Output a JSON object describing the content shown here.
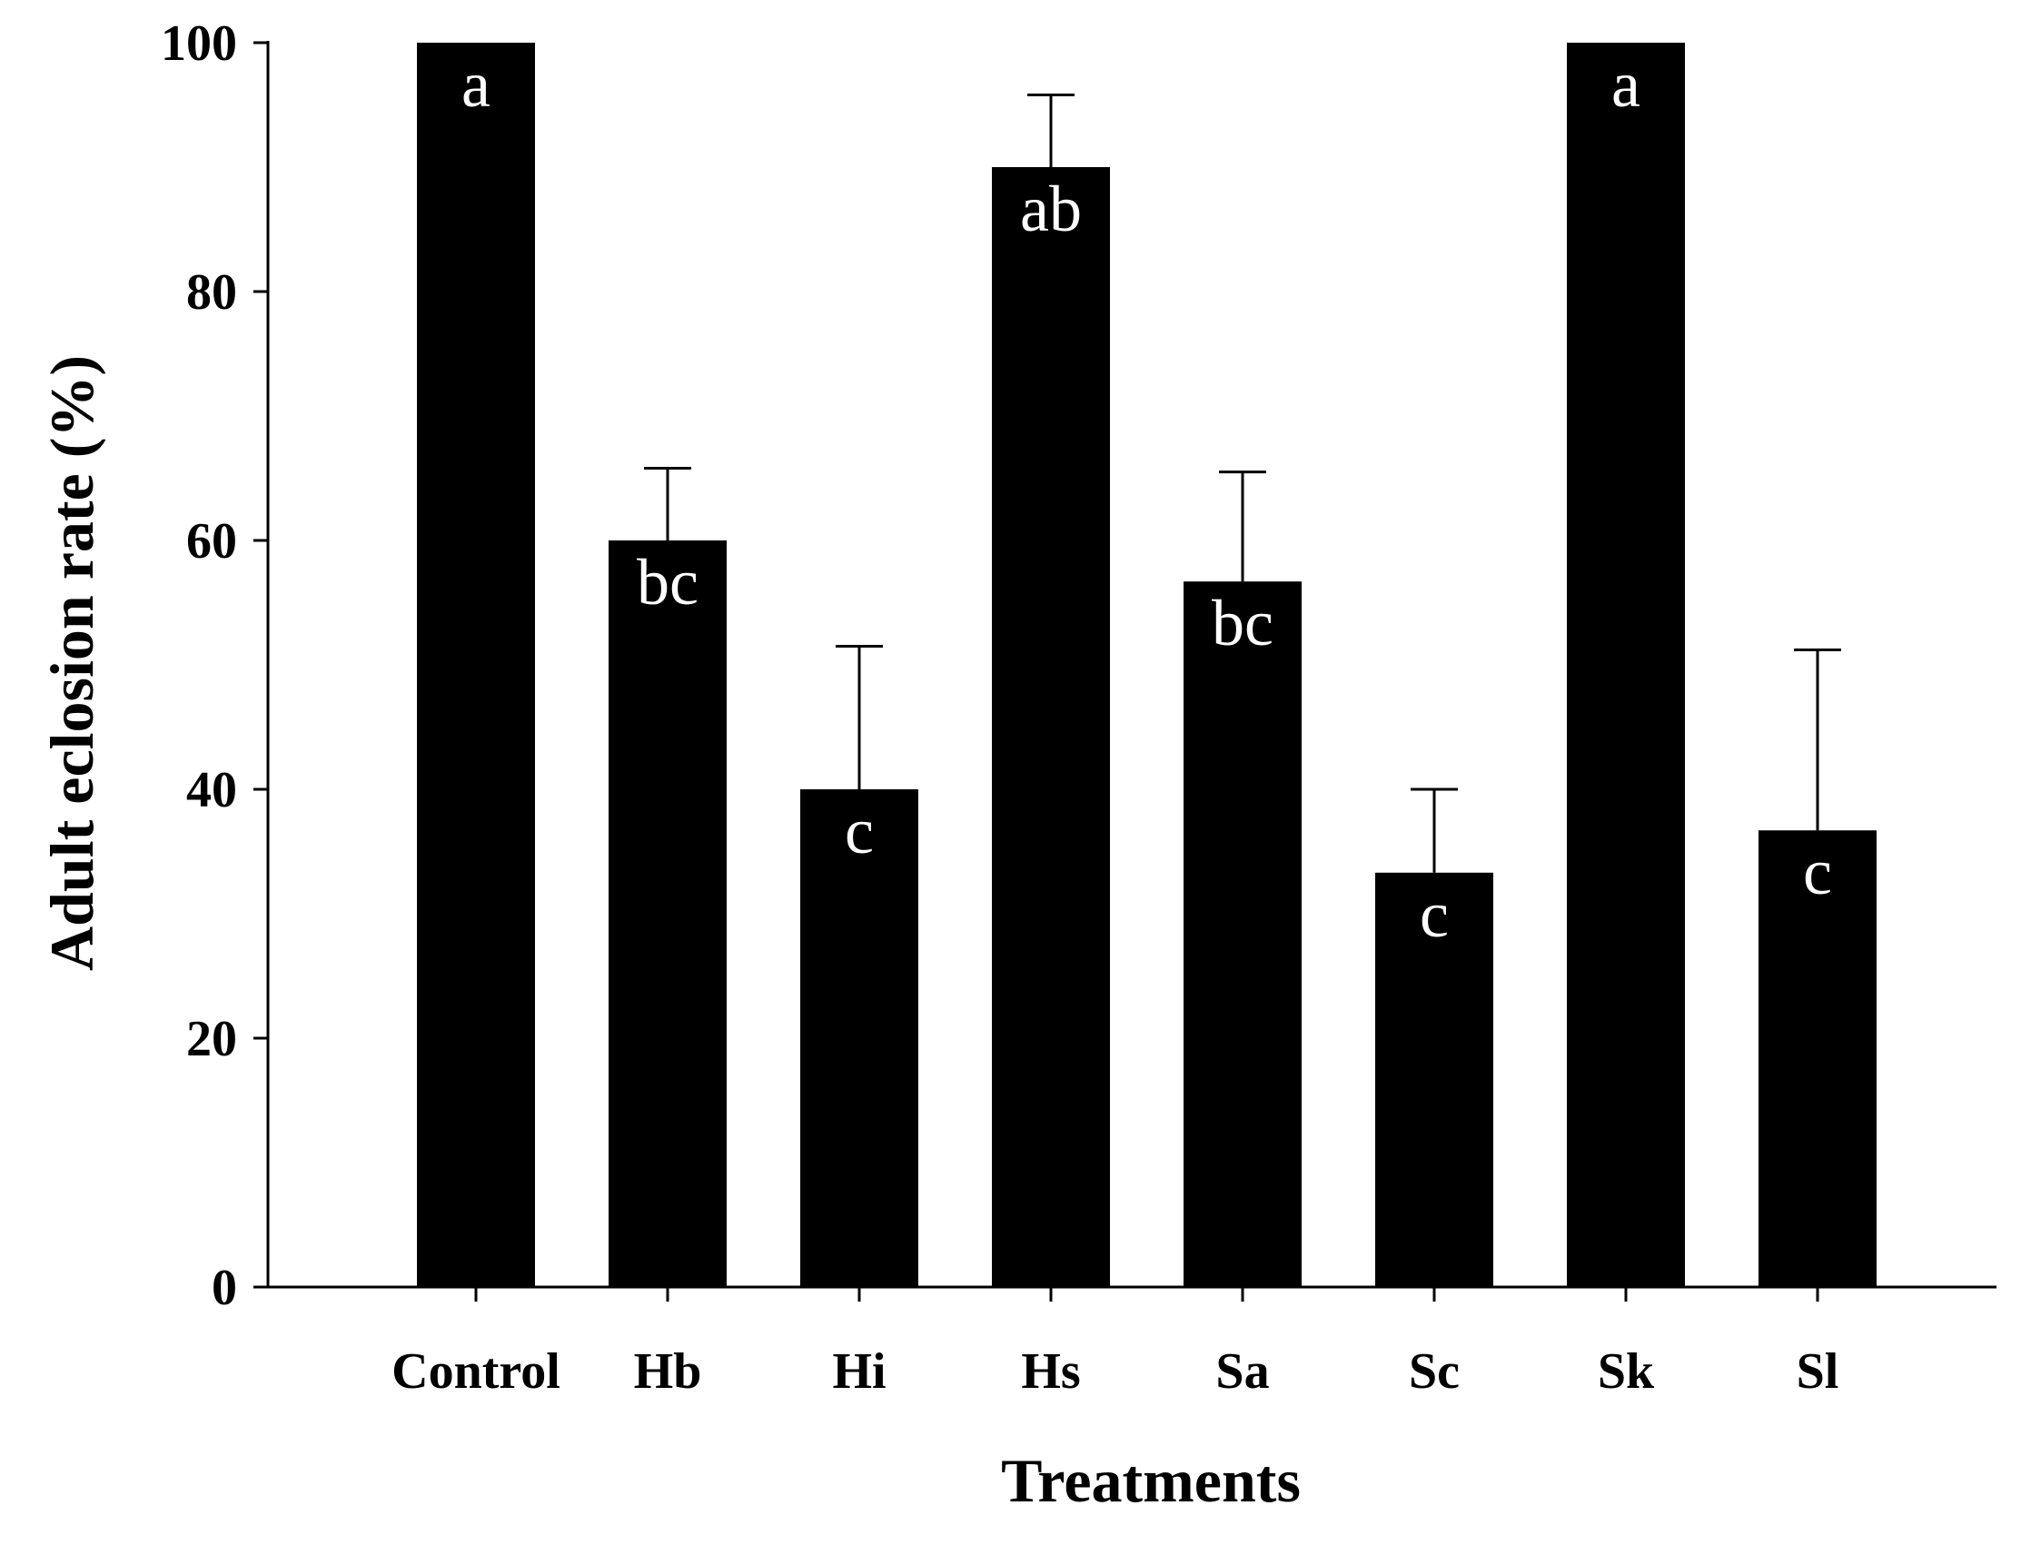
{
  "chart_data": {
    "type": "bar",
    "title": "",
    "xlabel": "Treatments",
    "ylabel": "Adult eclosion rate (%)",
    "ylim": [
      0,
      100
    ],
    "yticks": [
      0,
      20,
      40,
      60,
      80,
      100
    ],
    "categories": [
      "Control",
      "Hb",
      "Hi",
      "Hs",
      "Sa",
      "Sc",
      "Sk",
      "Sl"
    ],
    "values": [
      100,
      60,
      40,
      90,
      56.7,
      33.3,
      100,
      36.7
    ],
    "errors": [
      0,
      5.8,
      11.5,
      5.8,
      8.8,
      6.7,
      0,
      14.5
    ],
    "significance_letters": [
      "a",
      "bc",
      "c",
      "ab",
      "bc",
      "c",
      "a",
      "c"
    ],
    "bar_color": "#000000",
    "grid": false,
    "legend": "none"
  }
}
